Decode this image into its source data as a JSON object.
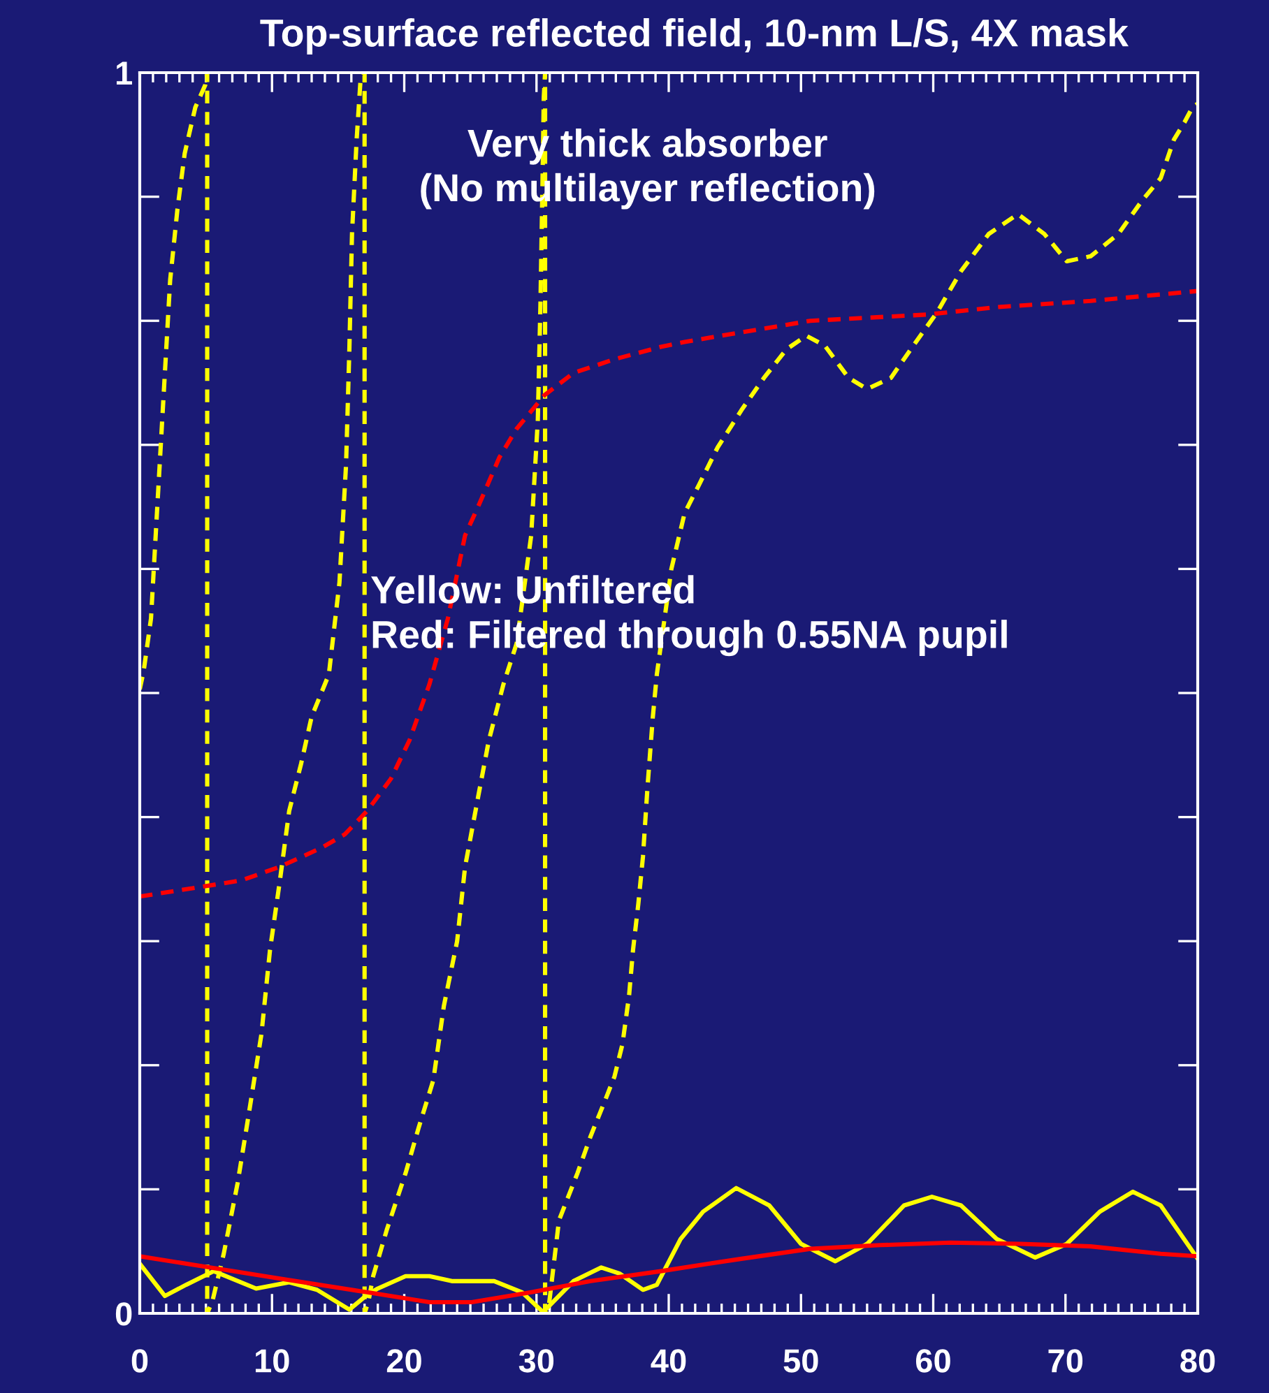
{
  "chart_data": {
    "type": "line",
    "title": "Top-surface reflected field, 10-nm L/S, 4X mask",
    "xlim": [
      0,
      80
    ],
    "ylim": [
      0,
      1
    ],
    "xticks": [
      0,
      10,
      20,
      30,
      40,
      50,
      60,
      70,
      80
    ],
    "yticks": [
      0,
      {
        "value": 0.1,
        "label": null
      },
      {
        "value": 0.2,
        "label": null
      },
      {
        "value": 0.3,
        "label": null
      },
      {
        "value": 0.4,
        "label": null
      },
      {
        "value": 0.5,
        "label": null
      },
      {
        "value": 0.6,
        "label": null
      },
      {
        "value": 0.7,
        "label": null
      },
      {
        "value": 0.8,
        "label": null
      },
      {
        "value": 0.9,
        "label": null
      },
      1
    ],
    "grid": false,
    "marker": "none",
    "annotations": [
      "Very thick absorber\n(No multilayer reflection)",
      "Yellow: Unfiltered\nRed: Filtered through 0.55NA pupil"
    ],
    "series": [
      {
        "color": "#ffff00",
        "line_style": "dashed",
        "x": [
          0,
          0.3,
          0.85,
          1.4,
          1.9,
          2.3,
          2.85,
          3.4,
          4.2,
          4.95,
          5.1,
          5.1,
          5.5,
          6.35,
          7.4,
          8.25,
          9.2,
          9.85,
          10.6,
          11.3,
          12.2,
          13.0,
          14.3,
          15.1,
          15.6,
          15.85,
          16.05,
          16.4,
          16.7,
          17.0,
          17.0,
          17.3,
          17.65,
          18.7,
          20.1,
          21.1,
          22.2,
          23.0,
          24.0,
          24.6,
          25.6,
          26.4,
          27.5,
          28.5,
          29.6,
          30.1,
          30.3,
          30.45,
          30.55,
          30.65,
          30.65,
          30.9,
          31.7,
          33.1,
          34.1,
          35.2,
          35.9,
          36.5,
          37.0,
          37.3,
          37.7,
          38.05,
          38.4,
          38.8,
          39.1,
          40.2,
          41.2,
          42.3,
          43.7,
          45.5,
          47.2,
          48.9,
          50.4,
          51.8,
          53.6,
          55.0,
          56.8,
          58.5,
          60.3,
          62.1,
          64.2,
          66.4,
          68.4,
          70.1,
          71.9,
          74.0,
          75.8,
          77.2,
          78.2,
          79.0,
          79.6,
          80
        ],
        "values": [
          0.503,
          0.518,
          0.56,
          0.664,
          0.758,
          0.833,
          0.89,
          0.935,
          0.972,
          0.99,
          1.0,
          0.0,
          0.01,
          0.048,
          0.105,
          0.161,
          0.225,
          0.293,
          0.349,
          0.405,
          0.443,
          0.481,
          0.515,
          0.589,
          0.684,
          0.777,
          0.87,
          0.946,
          0.995,
          1.0,
          0.0,
          0.01,
          0.03,
          0.068,
          0.113,
          0.15,
          0.188,
          0.248,
          0.3,
          0.36,
          0.417,
          0.462,
          0.507,
          0.54,
          0.627,
          0.72,
          0.814,
          0.909,
          0.98,
          1.0,
          0.0,
          0.003,
          0.075,
          0.113,
          0.143,
          0.172,
          0.191,
          0.217,
          0.256,
          0.293,
          0.33,
          0.368,
          0.425,
          0.481,
          0.515,
          0.6,
          0.645,
          0.668,
          0.698,
          0.728,
          0.754,
          0.777,
          0.788,
          0.78,
          0.754,
          0.745,
          0.754,
          0.78,
          0.807,
          0.84,
          0.87,
          0.886,
          0.87,
          0.848,
          0.852,
          0.87,
          0.897,
          0.915,
          0.946,
          0.96,
          0.972,
          0.975
        ]
      },
      {
        "color": "#ff0000",
        "line_style": "dashed",
        "x": [
          0,
          4.2,
          7.7,
          10.6,
          13.7,
          15.5,
          17.2,
          19.0,
          20.4,
          21.9,
          23.3,
          24.6,
          25.7,
          27.2,
          28.5,
          30.6,
          32.8,
          35.9,
          39.4,
          41.2,
          50.7,
          59.5,
          64.8,
          71.9,
          80
        ],
        "values": [
          0.336,
          0.343,
          0.349,
          0.36,
          0.375,
          0.386,
          0.405,
          0.431,
          0.462,
          0.507,
          0.56,
          0.627,
          0.653,
          0.69,
          0.713,
          0.74,
          0.758,
          0.769,
          0.779,
          0.783,
          0.8,
          0.805,
          0.811,
          0.816,
          0.824
        ]
      },
      {
        "color": "#ffff00",
        "line_style": "solid",
        "x": [
          0,
          1.9,
          3.5,
          5.6,
          8.8,
          11.3,
          13.4,
          15.85,
          17.2,
          18,
          20.1,
          21.9,
          23.6,
          26.8,
          28.9,
          30.5,
          32.8,
          34.9,
          36.3,
          38.05,
          39.1,
          40.9,
          42.6,
          45.1,
          47.6,
          50.0,
          52.6,
          55.0,
          57.8,
          59.9,
          62.1,
          64.8,
          67.7,
          70.1,
          72.6,
          75.1,
          77.2,
          80
        ],
        "values": [
          0.04,
          0.014,
          0.023,
          0.034,
          0.02,
          0.025,
          0.019,
          0.003,
          0.015,
          0.02,
          0.03,
          0.03,
          0.026,
          0.026,
          0.017,
          0.001,
          0.026,
          0.037,
          0.032,
          0.019,
          0.023,
          0.06,
          0.082,
          0.101,
          0.087,
          0.056,
          0.042,
          0.056,
          0.087,
          0.094,
          0.087,
          0.06,
          0.045,
          0.056,
          0.082,
          0.098,
          0.087,
          0.044
        ]
      },
      {
        "color": "#ff0000",
        "line_style": "solid",
        "x": [
          0,
          5.3,
          10.6,
          17.2,
          21.9,
          25.1,
          29.6,
          34.1,
          39.4,
          43,
          45.5,
          50.7,
          56,
          61.3,
          66.6,
          71.9,
          77.2,
          80
        ],
        "values": [
          0.046,
          0.037,
          0.028,
          0.017,
          0.009,
          0.009,
          0.017,
          0.026,
          0.034,
          0.04,
          0.044,
          0.052,
          0.055,
          0.057,
          0.056,
          0.054,
          0.048,
          0.046
        ]
      }
    ]
  }
}
